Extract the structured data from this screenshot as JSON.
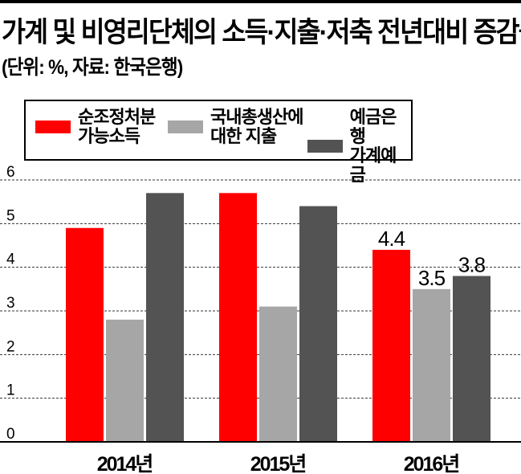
{
  "title": "가계 및 비영리단체의 소득·지출·저축 전년대비 증감률",
  "subtitle": "(단위: %, 자료: 한국은행)",
  "chart_data": {
    "type": "bar",
    "title": "가계 및 비영리단체의 소득·지출·저축 전년대비 증감률",
    "subtitle": "(단위: %, 자료: 한국은행)",
    "categories": [
      "2014년",
      "2015년",
      "2016년"
    ],
    "series": [
      {
        "name": "순조정처분\n가능소득",
        "color": "#ff0000",
        "values": [
          4.9,
          5.7,
          4.4
        ],
        "data_labels": [
          "",
          "",
          "4.4"
        ]
      },
      {
        "name": "국내총생산에\n대한 지출",
        "color": "#a6a6a6",
        "values": [
          2.8,
          3.1,
          3.5
        ],
        "data_labels": [
          "",
          "",
          "3.5"
        ]
      },
      {
        "name": "예금은행\n가계예금",
        "color": "#535353",
        "values": [
          5.7,
          5.4,
          3.8
        ],
        "data_labels": [
          "",
          "",
          "3.8"
        ]
      }
    ],
    "ylim": [
      0,
      6
    ],
    "yticks": [
      "0",
      "1",
      "2",
      "3",
      "4",
      "5",
      "6"
    ],
    "grid": true,
    "legend": "top"
  }
}
